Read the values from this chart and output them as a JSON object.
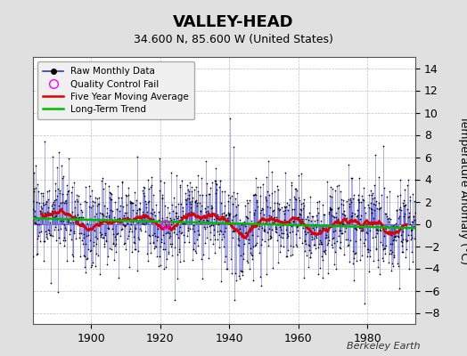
{
  "title": "VALLEY-HEAD",
  "subtitle": "34.600 N, 85.600 W (United States)",
  "ylabel": "Temperature Anomaly (°C)",
  "attribution": "Berkeley Earth",
  "ylim": [
    -9,
    15
  ],
  "yticks": [
    -8,
    -6,
    -4,
    -2,
    0,
    2,
    4,
    6,
    8,
    10,
    12,
    14
  ],
  "xlim": [
    1883,
    1994
  ],
  "xticks": [
    1900,
    1920,
    1940,
    1960,
    1980
  ],
  "start_year": 1883,
  "end_year": 1993,
  "seed": 17,
  "bg_color": "#e0e0e0",
  "plot_bg_color": "#ffffff",
  "raw_color": "#3333cc",
  "moving_avg_color": "#dd0000",
  "trend_color": "#00bb00",
  "qc_color": "#ff00ff",
  "title_fontsize": 13,
  "subtitle_fontsize": 9,
  "label_fontsize": 9,
  "grid_color": "#c0c0c0"
}
